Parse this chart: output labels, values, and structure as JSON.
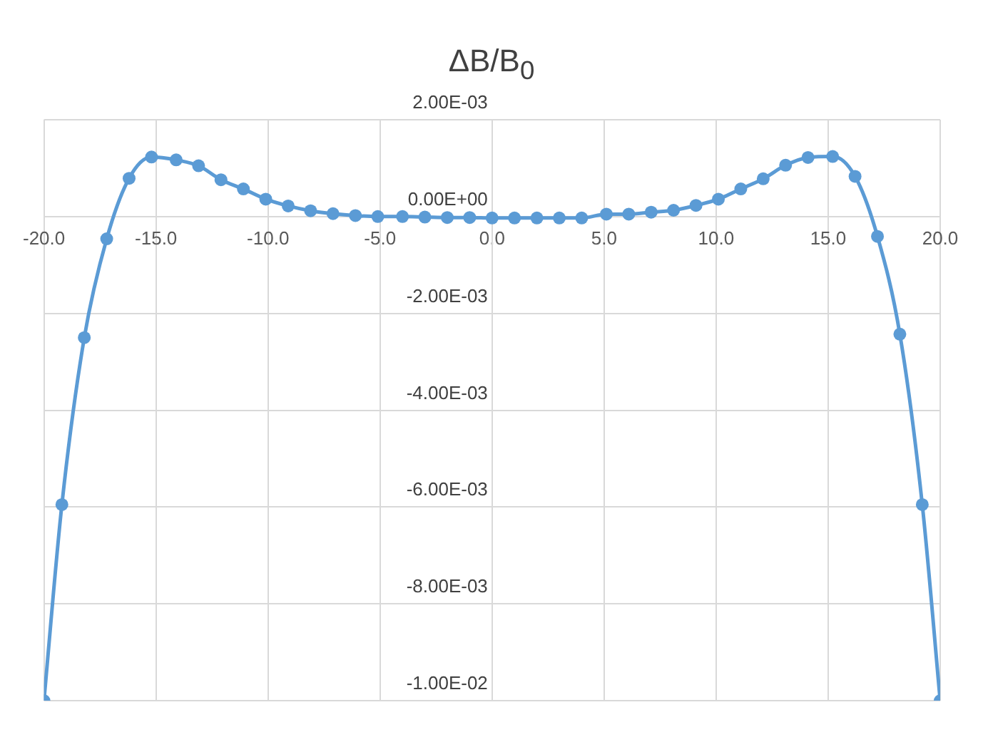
{
  "chart_data": {
    "type": "line",
    "title": "ΔB/B$_{0}$",
    "x": [
      -20,
      -19.2,
      -18.2,
      -17.2,
      -16.2,
      -15.2,
      -14.1,
      -13.1,
      -12.1,
      -11.1,
      -10.1,
      -9.1,
      -8.1,
      -7.1,
      -6.1,
      -5.1,
      -4.0,
      -3.0,
      -2.0,
      -1.0,
      0.0,
      1.0,
      2.0,
      3.0,
      4.0,
      5.1,
      6.1,
      7.1,
      8.1,
      9.1,
      10.1,
      11.1,
      12.1,
      13.1,
      14.1,
      15.2,
      16.2,
      17.2,
      18.2,
      19.2,
      20
    ],
    "series": [
      {
        "color": "#5b9bd5",
        "values": [
          -0.01,
          -0.00595,
          -0.0025,
          -0.00046,
          0.00079,
          0.00123,
          0.00117,
          0.00105,
          0.00076,
          0.00057,
          0.00036,
          0.00022,
          0.00012,
          6e-05,
          2e-05,
          0,
          0,
          -1e-05,
          -2e-05,
          -2e-05,
          -3e-05,
          -3e-05,
          -3e-05,
          -3e-05,
          -3e-05,
          5e-05,
          5e-05,
          9e-05,
          0.00013,
          0.00023,
          0.00036,
          0.00057,
          0.00078,
          0.00106,
          0.00122,
          0.00124,
          0.00083,
          -0.00041,
          -0.00243,
          -0.00595,
          -0.01
        ]
      }
    ],
    "xlim": [
      -20,
      20
    ],
    "xticks": [
      {
        "value": -20,
        "label": "-20.0"
      },
      {
        "value": -15,
        "label": "-15.0"
      },
      {
        "value": -10,
        "label": "-10.0"
      },
      {
        "value": -5,
        "label": "-5.0"
      },
      {
        "value": 0,
        "label": "0.0"
      },
      {
        "value": 5,
        "label": "5.0"
      },
      {
        "value": 10,
        "label": "10.0"
      },
      {
        "value": 15,
        "label": "15.0"
      },
      {
        "value": 20,
        "label": "20.0"
      }
    ],
    "ylim": [
      -0.01,
      0.002
    ],
    "yticks": [
      {
        "value": -0.01,
        "label": "-1.00E-02"
      },
      {
        "value": -0.008,
        "label": "-8.00E-03"
      },
      {
        "value": -0.006,
        "label": "-6.00E-03"
      },
      {
        "value": -0.004,
        "label": "-4.00E-03"
      },
      {
        "value": -0.002,
        "label": "-2.00E-03"
      },
      {
        "value": 0,
        "label": "0.00E+00"
      },
      {
        "value": 0.002,
        "label": "2.00E-03"
      }
    ],
    "grid": true,
    "marker": "circle",
    "line_style": "solid",
    "legend": false
  }
}
